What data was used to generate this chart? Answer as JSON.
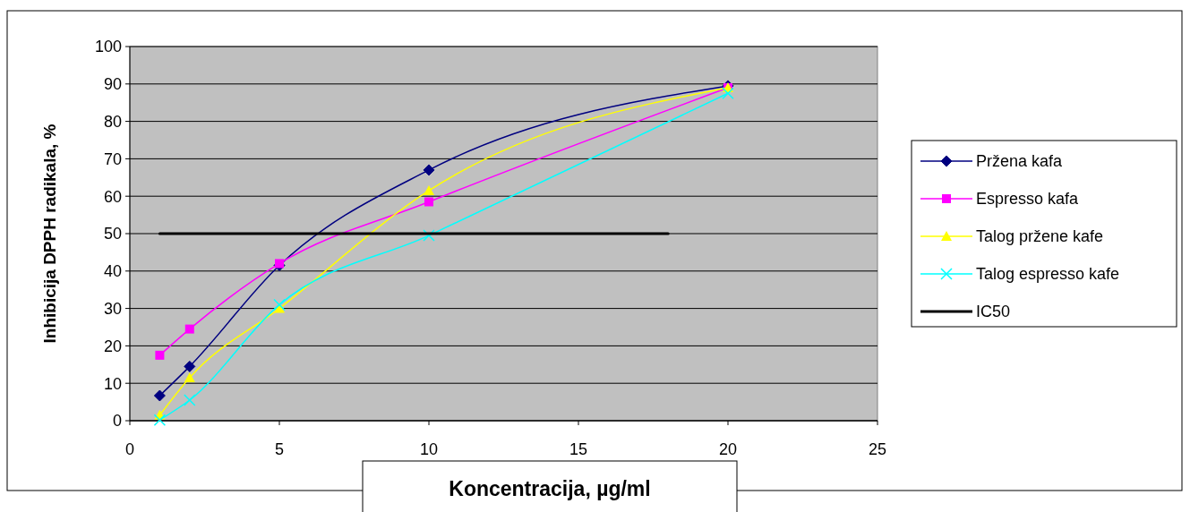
{
  "chart_data": {
    "type": "line",
    "xlabel": "Koncentracija, µg/ml",
    "ylabel": "Inhibicija DPPH radikala, %",
    "xlim": [
      0,
      25
    ],
    "xticks": [
      0,
      5,
      10,
      15,
      20,
      25
    ],
    "ylim": [
      0,
      100
    ],
    "yticks": [
      0,
      10,
      20,
      30,
      40,
      50,
      60,
      70,
      80,
      90,
      100
    ],
    "grid": "y",
    "legend": "right",
    "x": [
      1,
      2,
      5,
      10,
      20
    ],
    "series": [
      {
        "name": "Pržena kafa",
        "color": "#000080",
        "marker": "diamond",
        "values": [
          6.7,
          14.5,
          41.5,
          67,
          89.5
        ]
      },
      {
        "name": "Espresso kafa",
        "color": "#ff00ff",
        "marker": "square",
        "values": [
          17.5,
          24.5,
          42,
          58.5,
          89
        ]
      },
      {
        "name": "Talog pržene kafe",
        "color": "#ffff00",
        "marker": "triangle",
        "values": [
          1.5,
          11.5,
          30,
          61.5,
          89
        ]
      },
      {
        "name": "Talog espresso kafe",
        "color": "#00ffff",
        "marker": "cross",
        "values": [
          0.2,
          5.5,
          31,
          49.5,
          87.5
        ]
      },
      {
        "name": "IC50",
        "color": "#000000",
        "marker": "none",
        "x": [
          1,
          18
        ],
        "values": [
          50,
          50
        ]
      }
    ]
  }
}
